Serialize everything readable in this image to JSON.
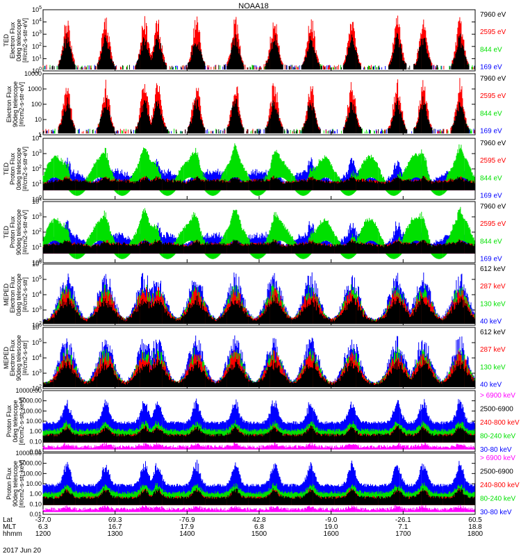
{
  "title": "NOAA18",
  "date": "2017 Jun 20",
  "colors": {
    "black": "#000000",
    "red": "#ff0000",
    "green": "#00e000",
    "blue": "#0000ff",
    "magenta": "#ff00ff"
  },
  "footer": {
    "row_labels": [
      "Lat",
      "MLT",
      "hhmm"
    ],
    "lat": [
      "-37.0",
      "69.3",
      "-76.9",
      "42.8",
      "-9.0",
      "-26.1",
      "60.5"
    ],
    "mlt": [
      "6.3",
      "16.7",
      "17.9",
      "6.8",
      "19.0",
      "7.1",
      "18.8"
    ],
    "hhmm": [
      "1200",
      "1300",
      "1400",
      "1500",
      "1600",
      "1700",
      "1800"
    ]
  },
  "chart_data": [
    {
      "type": "scatter",
      "ylabel": [
        "TED",
        "Electron Flux",
        "0deg telescope",
        "[#/cm2-s-str-eV]"
      ],
      "yscale": "log",
      "ytick_labels": [
        "10^0",
        "10^1",
        "10^2",
        "10^3",
        "10^4",
        "10^5"
      ],
      "ylim": [
        1,
        100000
      ],
      "series": [
        {
          "name": "7960 eV",
          "color": "#000000"
        },
        {
          "name": "2595 eV",
          "color": "#ff0000"
        },
        {
          "name": "844 eV",
          "color": "#00e000"
        },
        {
          "name": "169 eV",
          "color": "#0000ff"
        }
      ]
    },
    {
      "type": "scatter",
      "ylabel": [
        "Electron Flux",
        "90deg telescope",
        "[#/cm2-s-str-eV]"
      ],
      "yscale": "log",
      "ytick_labels": [
        "1",
        "10",
        "100",
        "1000",
        "10000"
      ],
      "ylim": [
        1,
        10000
      ],
      "series": [
        {
          "name": "7960 eV",
          "color": "#000000"
        },
        {
          "name": "2595 eV",
          "color": "#ff0000"
        },
        {
          "name": "844 eV",
          "color": "#00e000"
        },
        {
          "name": "169 eV",
          "color": "#0000ff"
        }
      ]
    },
    {
      "type": "scatter",
      "ylabel": [
        "TED",
        "Proton Flux",
        "0deg telescope",
        "[#/cm2-s-str-eV]"
      ],
      "yscale": "log",
      "ytick_labels": [
        "10^0",
        "10^1",
        "10^2",
        "10^3",
        "10^4"
      ],
      "ylim": [
        1,
        10000
      ],
      "series": [
        {
          "name": "7960 eV",
          "color": "#000000"
        },
        {
          "name": "2595 eV",
          "color": "#ff0000"
        },
        {
          "name": "844 eV",
          "color": "#00e000"
        },
        {
          "name": "169 eV",
          "color": "#0000ff"
        }
      ]
    },
    {
      "type": "scatter",
      "ylabel": [
        "TED",
        "Proton Flux",
        "90deg telescope",
        "[#/cm2-s-str-eV]"
      ],
      "yscale": "log",
      "ytick_labels": [
        "10^0",
        "10^1",
        "10^2",
        "10^3",
        "10^4"
      ],
      "ylim": [
        1,
        10000
      ],
      "series": [
        {
          "name": "7960 eV",
          "color": "#000000"
        },
        {
          "name": "2595 eV",
          "color": "#ff0000"
        },
        {
          "name": "844 eV",
          "color": "#00e000"
        },
        {
          "name": "169 eV",
          "color": "#0000ff"
        }
      ]
    },
    {
      "type": "scatter",
      "ylabel": [
        "MEPED",
        "Electron Flux",
        "0deg telescope",
        "[#/cm2-s-str]"
      ],
      "yscale": "log",
      "ytick_labels": [
        "10^2",
        "10^3",
        "10^4",
        "10^5",
        "10^6"
      ],
      "ylim": [
        100,
        1000000
      ],
      "series": [
        {
          "name": "612 keV",
          "color": "#000000"
        },
        {
          "name": "287 keV",
          "color": "#ff0000"
        },
        {
          "name": "130 keV",
          "color": "#00e000"
        },
        {
          "name": "40 keV",
          "color": "#0000ff"
        }
      ]
    },
    {
      "type": "scatter",
      "ylabel": [
        "MEPED",
        "Electron Flux",
        "90deg telescope",
        "[#/cm2-s-str]"
      ],
      "yscale": "log",
      "ytick_labels": [
        "10^2",
        "10^3",
        "10^4",
        "10^5",
        "10^6"
      ],
      "ylim": [
        100,
        1000000
      ],
      "series": [
        {
          "name": "612 keV",
          "color": "#000000"
        },
        {
          "name": "287 keV",
          "color": "#ff0000"
        },
        {
          "name": "130 keV",
          "color": "#00e000"
        },
        {
          "name": "40 keV",
          "color": "#0000ff"
        }
      ]
    },
    {
      "type": "scatter",
      "ylabel": [
        "Proton Flux",
        "0deg telescope",
        "[#/cm2-s-str-keV]"
      ],
      "yscale": "log",
      "ytick_labels": [
        "0.01",
        "0.10",
        "1.00",
        "10.00",
        "100.00",
        "1000.00",
        "10000.00"
      ],
      "ylim": [
        0.01,
        10000
      ],
      "series": [
        {
          "name": "> 6900 keV",
          "color": "#ff00ff"
        },
        {
          "name": "2500-6900",
          "color": "#000000"
        },
        {
          "name": "240-800 keV",
          "color": "#ff0000"
        },
        {
          "name": "80-240 keV",
          "color": "#00e000"
        },
        {
          "name": "30-80 keV",
          "color": "#0000ff"
        }
      ]
    },
    {
      "type": "scatter",
      "ylabel": [
        "Proton Flux",
        "90deg telescope",
        "[#/cm2-s-str-keV]"
      ],
      "yscale": "log",
      "ytick_labels": [
        "0.01",
        "0.10",
        "1.00",
        "10.00",
        "100.00",
        "1000.00",
        "10000.00"
      ],
      "ylim": [
        0.01,
        10000
      ],
      "series": [
        {
          "name": "> 6900 keV",
          "color": "#ff00ff"
        },
        {
          "name": "2500-6900",
          "color": "#000000"
        },
        {
          "name": "240-800 keV",
          "color": "#ff0000"
        },
        {
          "name": "80-240 keV",
          "color": "#00e000"
        },
        {
          "name": "30-80 keV",
          "color": "#0000ff"
        }
      ]
    }
  ]
}
